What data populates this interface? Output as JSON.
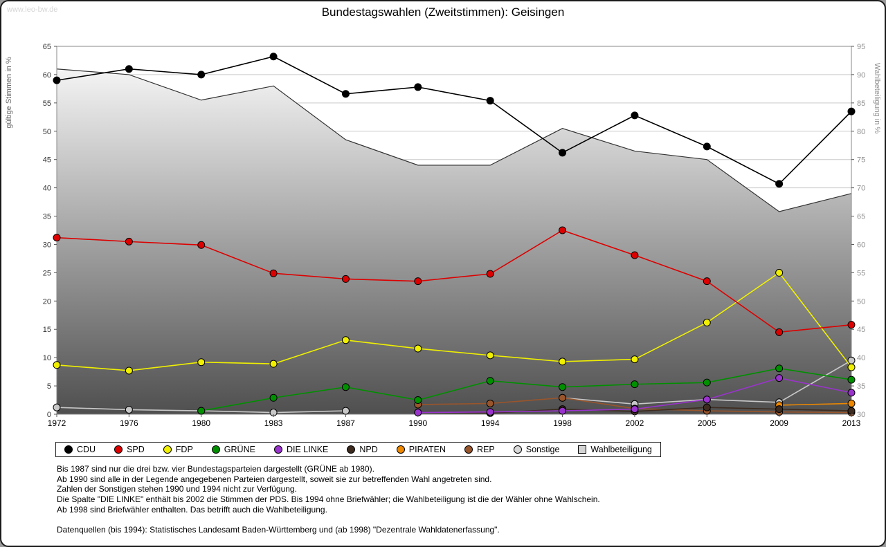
{
  "page": {
    "watermark": "www.leo-bw.de",
    "title": "Bundestagswahlen (Zweitstimmen): Geisingen"
  },
  "notes": {
    "lines": [
      "Bis 1987 sind nur die drei bzw. vier Bundestagsparteien dargestellt (GRÜNE ab 1980).",
      "Ab 1990 sind alle in der Legende angegebenen Parteien dargestellt, soweit sie zur betreffenden Wahl angetreten sind.",
      "Zahlen der Sonstigen stehen 1990 und 1994 nicht zur Verfügung.",
      "Die Spalte \"DIE LINKE\" enthält bis 2002 die Stimmen der PDS. Bis 1994 ohne Briefwähler; die Wahlbeteiligung ist die der Wähler ohne Wahlschein.",
      "Ab 1998 sind Briefwähler enthalten. Das betrifft auch die Wahlbeteiligung.",
      "",
      "Datenquellen (bis 1994): Statistisches Landesamt Baden-Württemberg und (ab 1998) \"Dezentrale Wahldatenerfassung\"."
    ]
  },
  "chart_data": {
    "type": "line",
    "title": "Bundestagswahlen (Zweitstimmen): Geisingen",
    "x": [
      1972,
      1976,
      1980,
      1983,
      1987,
      1990,
      1994,
      1998,
      2002,
      2005,
      2009,
      2013
    ],
    "left_axis": {
      "label": "gültige Stimmen in %",
      "min": 0,
      "max": 65,
      "step": 5
    },
    "right_axis": {
      "label": "Wahlbeteiligung in %",
      "min": 30,
      "max": 95,
      "step": 5
    },
    "grid": true,
    "legend_position": "bottom",
    "series": [
      {
        "name": "CDU",
        "type": "line",
        "axis": "left",
        "color": "#000000",
        "marker": "circle",
        "values": [
          59.0,
          61.0,
          60.0,
          63.2,
          56.6,
          57.8,
          55.4,
          46.2,
          52.8,
          47.3,
          40.7,
          53.5
        ]
      },
      {
        "name": "SPD",
        "type": "line",
        "axis": "left",
        "color": "#dd0000",
        "marker": "circle",
        "values": [
          31.2,
          30.5,
          29.9,
          24.9,
          23.9,
          23.5,
          24.8,
          32.5,
          28.1,
          23.5,
          14.5,
          15.8
        ]
      },
      {
        "name": "FDP",
        "type": "line",
        "axis": "left",
        "color": "#f0f000",
        "marker": "circle",
        "values": [
          8.7,
          7.7,
          9.2,
          8.9,
          13.1,
          11.6,
          10.4,
          9.3,
          9.7,
          16.2,
          25.0,
          8.3
        ]
      },
      {
        "name": "GRÜNE",
        "type": "line",
        "axis": "left",
        "color": "#009000",
        "marker": "circle",
        "values": [
          null,
          null,
          0.6,
          2.9,
          4.8,
          2.5,
          5.9,
          4.8,
          5.3,
          5.6,
          8.1,
          6.1
        ]
      },
      {
        "name": "DIE LINKE",
        "type": "line",
        "axis": "left",
        "color": "#9933cc",
        "marker": "circle",
        "values": [
          null,
          null,
          null,
          null,
          null,
          0.3,
          0.4,
          0.6,
          0.9,
          2.6,
          6.4,
          3.8
        ]
      },
      {
        "name": "NPD",
        "type": "line",
        "axis": "left",
        "color": "#3d2b1f",
        "marker": "circle",
        "values": [
          null,
          null,
          null,
          null,
          null,
          0.3,
          0.2,
          0.9,
          0.5,
          1.2,
          0.9,
          0.6
        ]
      },
      {
        "name": "PIRATEN",
        "type": "line",
        "axis": "left",
        "color": "#ee8800",
        "marker": "circle",
        "values": [
          null,
          null,
          null,
          null,
          null,
          null,
          null,
          null,
          null,
          null,
          1.6,
          1.9
        ]
      },
      {
        "name": "REP",
        "type": "line",
        "axis": "left",
        "color": "#99552b",
        "marker": "circle",
        "values": [
          null,
          null,
          null,
          null,
          null,
          1.7,
          1.9,
          2.9,
          1.0,
          0.6,
          0.4,
          0.3
        ]
      },
      {
        "name": "Sonstige",
        "type": "line",
        "axis": "left",
        "color": "#c8c8c8",
        "legend_fill": "#d9d9d9",
        "marker": "circle",
        "values": [
          1.2,
          0.8,
          0.6,
          0.3,
          0.6,
          null,
          null,
          2.9,
          1.8,
          2.6,
          2.1,
          9.5
        ]
      },
      {
        "name": "Wahlbeteiligung",
        "type": "area",
        "axis": "right",
        "color": "#444444",
        "legend_fill": "#d4d4d4",
        "fill_top": "#ffffff",
        "fill_bottom": "#4f4f4f",
        "marker": "square",
        "values": [
          91.0,
          90.0,
          85.5,
          88.0,
          78.5,
          74.0,
          74.0,
          80.5,
          76.5,
          75.0,
          65.8,
          69.0
        ]
      }
    ],
    "colors": {
      "grid": "#c9c9c9",
      "plot_border": "#888888",
      "left_ticks": "#333333",
      "right_ticks": "#909090",
      "year_labels": "#000000"
    }
  }
}
